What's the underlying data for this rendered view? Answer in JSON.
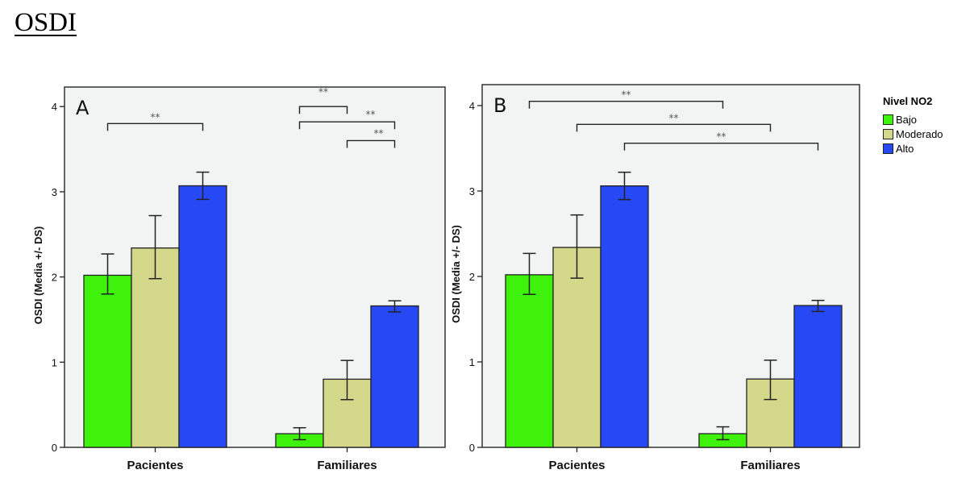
{
  "page": {
    "title": "OSDI"
  },
  "legend": {
    "title": "Nivel NO2",
    "items": [
      {
        "label": "Bajo",
        "color": "#3ef20c"
      },
      {
        "label": "Moderado",
        "color": "#d4d88a"
      },
      {
        "label": "Alto",
        "color": "#2748f5"
      }
    ]
  },
  "chart_data": [
    {
      "type": "bar",
      "panel_label": "A",
      "title": "",
      "xlabel": "",
      "ylabel": "OSDI (Media +/- DS)",
      "ylim": [
        0,
        4.2
      ],
      "yticks": [
        0,
        1,
        2,
        3,
        4
      ],
      "ytick_labels": [
        "0",
        "1",
        "2",
        "3",
        "4"
      ],
      "categories": [
        "Pacientes",
        "Familiares"
      ],
      "grid": false,
      "series": [
        {
          "name": "Bajo",
          "values": [
            2.02,
            0.16
          ],
          "err_low": [
            1.8,
            0.09
          ],
          "err_high": [
            2.27,
            0.23
          ]
        },
        {
          "name": "Moderado",
          "values": [
            2.34,
            0.8
          ],
          "err_low": [
            1.98,
            0.56
          ],
          "err_high": [
            2.72,
            1.02
          ]
        },
        {
          "name": "Alto",
          "values": [
            3.07,
            1.66
          ],
          "err_low": [
            2.91,
            1.59
          ],
          "err_high": [
            3.23,
            1.72
          ]
        }
      ],
      "significance": [
        {
          "from": [
            "Pacientes",
            "Bajo"
          ],
          "to": [
            "Pacientes",
            "Alto"
          ],
          "label": "**",
          "level": 3.8
        },
        {
          "from": [
            "Familiares",
            "Bajo"
          ],
          "to": [
            "Familiares",
            "Moderado"
          ],
          "label": "**",
          "level": 4.0
        },
        {
          "from": [
            "Familiares",
            "Bajo"
          ],
          "to": [
            "Familiares",
            "Alto"
          ],
          "label": "**",
          "level": 3.82
        },
        {
          "from": [
            "Familiares",
            "Moderado"
          ],
          "to": [
            "Familiares",
            "Alto"
          ],
          "label": "**",
          "level": 3.6
        }
      ]
    },
    {
      "type": "bar",
      "panel_label": "B",
      "title": "",
      "xlabel": "",
      "ylabel": "OSDI (Media +/- DS)",
      "ylim": [
        0,
        4.2
      ],
      "yticks": [
        0,
        1,
        2,
        3,
        4
      ],
      "ytick_labels": [
        "0",
        "1",
        "2",
        "3",
        "4"
      ],
      "categories": [
        "Pacientes",
        "Familiares"
      ],
      "grid": false,
      "series": [
        {
          "name": "Bajo",
          "values": [
            2.02,
            0.16
          ],
          "err_low": [
            1.79,
            0.09
          ],
          "err_high": [
            2.27,
            0.24
          ]
        },
        {
          "name": "Moderado",
          "values": [
            2.34,
            0.8
          ],
          "err_low": [
            1.98,
            0.56
          ],
          "err_high": [
            2.72,
            1.02
          ]
        },
        {
          "name": "Alto",
          "values": [
            3.06,
            1.66
          ],
          "err_low": [
            2.9,
            1.59
          ],
          "err_high": [
            3.22,
            1.72
          ]
        }
      ],
      "significance": [
        {
          "from": [
            "Pacientes",
            "Bajo"
          ],
          "to": [
            "Familiares",
            "Bajo"
          ],
          "label": "**",
          "level": 4.05
        },
        {
          "from": [
            "Pacientes",
            "Moderado"
          ],
          "to": [
            "Familiares",
            "Moderado"
          ],
          "label": "**",
          "level": 3.78
        },
        {
          "from": [
            "Pacientes",
            "Alto"
          ],
          "to": [
            "Familiares",
            "Alto"
          ],
          "label": "**",
          "level": 3.56
        }
      ]
    }
  ]
}
